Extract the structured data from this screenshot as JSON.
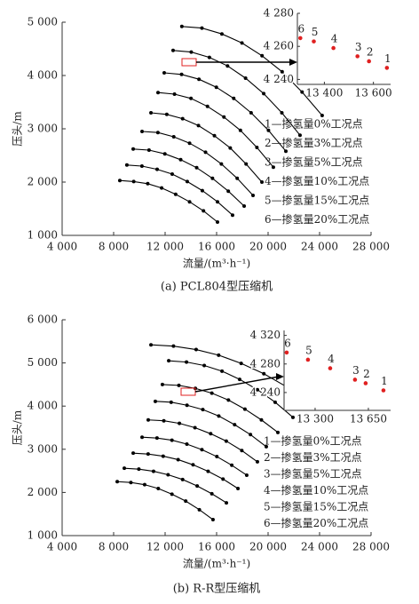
{
  "chart_data": [
    {
      "type": "line",
      "caption": "(a) PCL804型压缩机",
      "xlabel": "流量/(m³·h⁻¹)",
      "ylabel": "压头/m",
      "color": "#000000",
      "xlim": [
        4000,
        28000
      ],
      "ylim": [
        1000,
        5000
      ],
      "xticks": [
        {
          "value": 4000,
          "label": "4 000"
        },
        {
          "value": 8000,
          "label": "8 000"
        },
        {
          "value": 12000,
          "label": "12 000"
        },
        {
          "value": 16000,
          "label": "16 000"
        },
        {
          "value": 20000,
          "label": "20 000"
        },
        {
          "value": 24000,
          "label": "24 000"
        },
        {
          "value": 28000,
          "label": "28 000"
        }
      ],
      "yticks": [
        {
          "value": 1000,
          "label": "1 000"
        },
        {
          "value": 2000,
          "label": "2 000"
        },
        {
          "value": 3000,
          "label": "3 000"
        },
        {
          "value": 4000,
          "label": "4 000"
        },
        {
          "value": 5000,
          "label": "5 000"
        }
      ],
      "series": [
        {
          "x": [
            13300,
            14860,
            16410,
            17970,
            19530,
            21090,
            22640,
            24200
          ],
          "values": [
            4920,
            4890,
            4780,
            4610,
            4370,
            4070,
            3690,
            3250
          ]
        },
        {
          "x": [
            12620,
            14030,
            15440,
            16850,
            18250,
            19660,
            21070,
            22480
          ],
          "values": [
            4470,
            4440,
            4340,
            4180,
            3950,
            3660,
            3300,
            2880
          ]
        },
        {
          "x": [
            11930,
            13280,
            14630,
            15980,
            17330,
            18680,
            20030,
            21380
          ],
          "values": [
            4050,
            4020,
            3930,
            3780,
            3570,
            3300,
            2970,
            2580
          ]
        },
        {
          "x": [
            11450,
            12730,
            14010,
            15290,
            16570,
            17850,
            19130,
            20410
          ],
          "values": [
            3680,
            3650,
            3570,
            3420,
            3220,
            2970,
            2650,
            2280
          ]
        },
        {
          "x": [
            10900,
            12130,
            13360,
            14590,
            15830,
            17060,
            18290,
            19520
          ],
          "values": [
            3300,
            3270,
            3190,
            3060,
            2870,
            2640,
            2340,
            2000
          ]
        },
        {
          "x": [
            10210,
            11440,
            12670,
            13900,
            15140,
            16370,
            17600,
            18830
          ],
          "values": [
            2950,
            2930,
            2850,
            2730,
            2560,
            2340,
            2070,
            1750
          ]
        },
        {
          "x": [
            9520,
            10750,
            11980,
            13210,
            14450,
            15680,
            16910,
            18140
          ],
          "values": [
            2620,
            2600,
            2530,
            2420,
            2270,
            2070,
            1830,
            1550
          ]
        },
        {
          "x": [
            9030,
            10200,
            11380,
            12550,
            13720,
            14890,
            16070,
            17240
          ],
          "values": [
            2320,
            2300,
            2240,
            2150,
            2010,
            1840,
            1630,
            1380
          ]
        },
        {
          "x": [
            8480,
            9560,
            10650,
            11730,
            12820,
            13900,
            14980,
            16070
          ],
          "values": [
            2030,
            2010,
            1970,
            1890,
            1770,
            1630,
            1460,
            1250
          ]
        }
      ],
      "annotations": [
        "1—掺氢量0%工况点",
        "2—掺氢量3%工况点",
        "3—掺氢量5%工况点",
        "4—掺氢量10%工况点",
        "5—掺氢量15%工况点",
        "6—掺氢量20%工况点"
      ],
      "inset": {
        "type": "scatter",
        "color": "#e02020",
        "xlim": [
          13290,
          13670
        ],
        "ylim": [
          4237,
          4280
        ],
        "xticks": [
          {
            "value": 13400,
            "label": "13 400"
          },
          {
            "value": 13600,
            "label": "13 600"
          }
        ],
        "yticks": [
          {
            "value": 4240,
            "label": "4 240"
          },
          {
            "value": 4260,
            "label": "4 260"
          },
          {
            "value": 4280,
            "label": "4 280"
          }
        ],
        "labels": [
          "1",
          "2",
          "3",
          "4",
          "5",
          "6"
        ],
        "x": [
          13655,
          13582,
          13535,
          13437,
          13357,
          13302
        ],
        "values": [
          4247,
          4251,
          4254,
          4259,
          4263,
          4265
        ]
      }
    },
    {
      "type": "line",
      "caption": "(b) R-R型压缩机",
      "xlabel": "流量/(m³·h⁻¹)",
      "ylabel": "压头/m",
      "color": "#000000",
      "xlim": [
        4000,
        28000
      ],
      "ylim": [
        1000,
        6000
      ],
      "xticks": [
        {
          "value": 4000,
          "label": "4 000"
        },
        {
          "value": 8000,
          "label": "8 000"
        },
        {
          "value": 12000,
          "label": "12 000"
        },
        {
          "value": 16000,
          "label": "16 000"
        },
        {
          "value": 20000,
          "label": "20 000"
        },
        {
          "value": 24000,
          "label": "24 000"
        },
        {
          "value": 28000,
          "label": "28 000"
        }
      ],
      "yticks": [
        {
          "value": 1000,
          "label": "1 000"
        },
        {
          "value": 2000,
          "label": "2 000"
        },
        {
          "value": 3000,
          "label": "3 000"
        },
        {
          "value": 4000,
          "label": "4 000"
        },
        {
          "value": 5000,
          "label": "5 000"
        },
        {
          "value": 6000,
          "label": "6 000"
        }
      ],
      "series": [
        {
          "x": [
            10900,
            12650,
            14410,
            16160,
            17910,
            19670,
            21420,
            23170
          ],
          "values": [
            5420,
            5390,
            5310,
            5180,
            4990,
            4750,
            4450,
            4100
          ]
        },
        {
          "x": [
            12280,
            13660,
            15040,
            16420,
            17790,
            19170,
            20550,
            21930
          ],
          "values": [
            5050,
            5020,
            4940,
            4810,
            4620,
            4380,
            4090,
            3740
          ]
        },
        {
          "x": [
            11790,
            13070,
            14350,
            15630,
            16920,
            18200,
            19480,
            20760
          ],
          "values": [
            4500,
            4480,
            4410,
            4300,
            4140,
            3930,
            3680,
            3390
          ]
        },
        {
          "x": [
            11240,
            12470,
            13700,
            14930,
            16170,
            17400,
            18630,
            19860
          ],
          "values": [
            4110,
            4090,
            4020,
            3920,
            3770,
            3570,
            3340,
            3060
          ]
        },
        {
          "x": [
            10690,
            11900,
            13110,
            14320,
            15540,
            16750,
            17960,
            19170
          ],
          "values": [
            3680,
            3660,
            3600,
            3500,
            3360,
            3190,
            2970,
            2710
          ]
        },
        {
          "x": [
            10210,
            11370,
            12530,
            13690,
            14860,
            16020,
            17180,
            18340
          ],
          "values": [
            3280,
            3260,
            3210,
            3120,
            2990,
            2830,
            2630,
            2400
          ]
        },
        {
          "x": [
            9520,
            10680,
            11850,
            13010,
            14170,
            15340,
            16500,
            17660
          ],
          "values": [
            2910,
            2890,
            2840,
            2760,
            2640,
            2490,
            2310,
            2090
          ]
        },
        {
          "x": [
            8830,
            9960,
            11100,
            12230,
            13360,
            14490,
            15630,
            16760
          ],
          "values": [
            2560,
            2540,
            2490,
            2410,
            2300,
            2150,
            1970,
            1760
          ]
        },
        {
          "x": [
            8280,
            9340,
            10410,
            11470,
            12530,
            13600,
            14660,
            15720
          ],
          "values": [
            2250,
            2230,
            2180,
            2090,
            1960,
            1800,
            1600,
            1370
          ]
        }
      ],
      "annotations": [
        "1—掺氢量0%工况点",
        "2—掺氢量3%工况点",
        "3—掺氢量5%工况点",
        "4—掺氢量10%工况点",
        "5—掺氢量15%工况点",
        "6—掺氢量20%工况点"
      ],
      "inset": {
        "type": "scatter",
        "color": "#e02020",
        "xlim": [
          13096,
          13796
        ],
        "ylim": [
          4215,
          4327
        ],
        "xticks": [
          {
            "value": 13300,
            "label": "13 300"
          },
          {
            "value": 13650,
            "label": "13 650"
          }
        ],
        "yticks": [
          {
            "value": 4240,
            "label": "4 240"
          },
          {
            "value": 4280,
            "label": "4 280"
          },
          {
            "value": 4320,
            "label": "4 320"
          }
        ],
        "labels": [
          "1",
          "2",
          "3",
          "4",
          "5",
          "6"
        ],
        "x": [
          13749,
          13632,
          13562,
          13399,
          13253,
          13113
        ],
        "values": [
          4243,
          4253,
          4258,
          4274,
          4286,
          4296
        ]
      }
    }
  ]
}
